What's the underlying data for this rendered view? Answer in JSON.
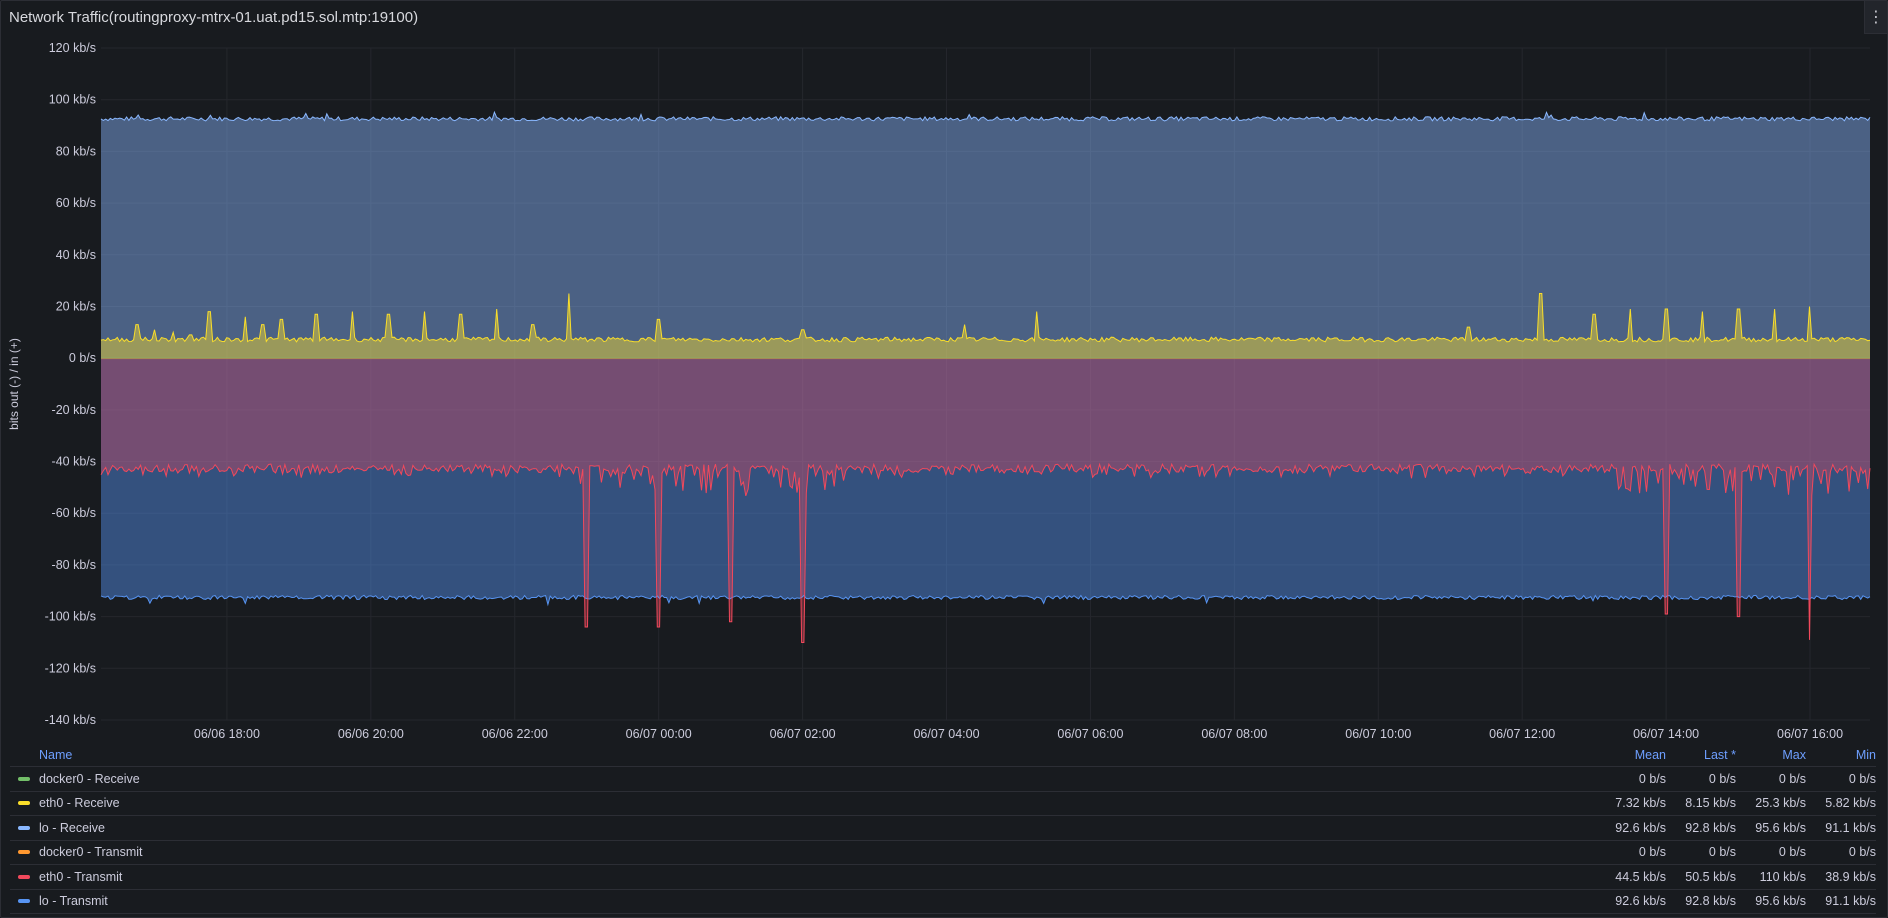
{
  "panel": {
    "title": "Network Traffic(routingproxy-mtrx-01.uat.pd15.sol.mtp:19100)",
    "menu_icon": "more-vertical-icon"
  },
  "chart_data": {
    "type": "area",
    "ylabel": "bits out (-) / in (+)",
    "y_unit": "kb/s",
    "ylim": [
      -140,
      120
    ],
    "y_ticks": [
      "120 kb/s",
      "100 kb/s",
      "80 kb/s",
      "60 kb/s",
      "40 kb/s",
      "20 kb/s",
      "0 b/s",
      "-20 kb/s",
      "-40 kb/s",
      "-60 kb/s",
      "-80 kb/s",
      "-100 kb/s",
      "-120 kb/s",
      "-140 kb/s"
    ],
    "x_ticks": [
      "06/06 18:00",
      "06/06 20:00",
      "06/06 22:00",
      "06/07 00:00",
      "06/07 02:00",
      "06/07 04:00",
      "06/07 06:00",
      "06/07 08:00",
      "06/07 10:00",
      "06/07 12:00",
      "06/07 14:00",
      "06/07 16:00"
    ],
    "x_range": [
      "06/06 16:15",
      "06/07 16:50"
    ],
    "grid": true,
    "series": [
      {
        "name": "docker0 - Receive",
        "color": "#73bf69",
        "mean": 0,
        "direction": "in"
      },
      {
        "name": "eth0 - Receive",
        "color": "#fade2a",
        "mean": 7.32,
        "direction": "in",
        "spikes": [
          [
            "06/06 16:45",
            13
          ],
          [
            "06/06 17:00",
            11
          ],
          [
            "06/06 17:15",
            10
          ],
          [
            "06/06 17:30",
            9
          ],
          [
            "06/06 17:45",
            18
          ],
          [
            "06/06 18:15",
            16
          ],
          [
            "06/06 18:30",
            13
          ],
          [
            "06/06 18:45",
            15
          ],
          [
            "06/06 19:15",
            17
          ],
          [
            "06/06 19:45",
            18
          ],
          [
            "06/06 20:15",
            17
          ],
          [
            "06/06 20:45",
            18
          ],
          [
            "06/06 21:15",
            17
          ],
          [
            "06/06 21:45",
            19
          ],
          [
            "06/06 22:15",
            13
          ],
          [
            "06/06 22:45",
            25
          ],
          [
            "06/07 00:00",
            15
          ],
          [
            "06/07 02:00",
            11
          ],
          [
            "06/07 04:15",
            13
          ],
          [
            "06/07 05:15",
            18
          ],
          [
            "06/07 11:15",
            12
          ],
          [
            "06/07 12:15",
            25
          ],
          [
            "06/07 13:00",
            17
          ],
          [
            "06/07 13:30",
            19
          ],
          [
            "06/07 14:00",
            19
          ],
          [
            "06/07 14:30",
            18
          ],
          [
            "06/07 15:00",
            19
          ],
          [
            "06/07 15:30",
            19
          ],
          [
            "06/07 16:00",
            20
          ]
        ]
      },
      {
        "name": "lo - Receive",
        "color": "#8ab8ff",
        "mean": 92.6,
        "direction": "in"
      },
      {
        "name": "docker0 - Transmit",
        "color": "#ff9830",
        "mean": 0,
        "direction": "out"
      },
      {
        "name": "eth0 - Transmit",
        "color": "#f2495c",
        "mean": 44.5,
        "direction": "out",
        "spikes": [
          [
            "06/06 23:00",
            -104
          ],
          [
            "06/07 00:00",
            -104
          ],
          [
            "06/07 01:00",
            -102
          ],
          [
            "06/07 02:00",
            -110
          ],
          [
            "06/07 14:00",
            -99
          ],
          [
            "06/07 15:00",
            -100
          ],
          [
            "06/07 16:00",
            -109
          ]
        ]
      },
      {
        "name": "lo - Transmit",
        "color": "#5794f2",
        "mean": 92.6,
        "direction": "out"
      }
    ]
  },
  "legend": {
    "headers": {
      "name": "Name",
      "mean": "Mean",
      "last": "Last *",
      "max": "Max",
      "min": "Min"
    },
    "rows": [
      {
        "name": "docker0 - Receive",
        "color": "#73bf69",
        "mean": "0 b/s",
        "last": "0 b/s",
        "max": "0 b/s",
        "min": "0 b/s"
      },
      {
        "name": "eth0 - Receive",
        "color": "#fade2a",
        "mean": "7.32 kb/s",
        "last": "8.15 kb/s",
        "max": "25.3 kb/s",
        "min": "5.82 kb/s"
      },
      {
        "name": "lo - Receive",
        "color": "#8ab8ff",
        "mean": "92.6 kb/s",
        "last": "92.8 kb/s",
        "max": "95.6 kb/s",
        "min": "91.1 kb/s"
      },
      {
        "name": "docker0 - Transmit",
        "color": "#ff9830",
        "mean": "0 b/s",
        "last": "0 b/s",
        "max": "0 b/s",
        "min": "0 b/s"
      },
      {
        "name": "eth0 - Transmit",
        "color": "#f2495c",
        "mean": "44.5 kb/s",
        "last": "50.5 kb/s",
        "max": "110 kb/s",
        "min": "38.9 kb/s"
      },
      {
        "name": "lo - Transmit",
        "color": "#5794f2",
        "mean": "92.6 kb/s",
        "last": "92.8 kb/s",
        "max": "95.6 kb/s",
        "min": "91.1 kb/s"
      }
    ]
  }
}
